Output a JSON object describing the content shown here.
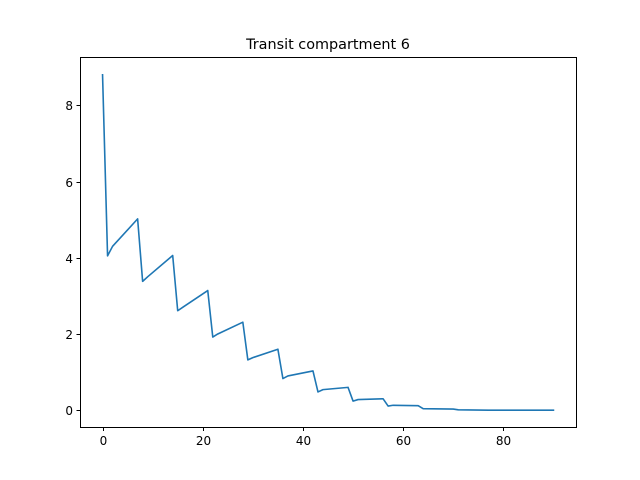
{
  "chart_data": {
    "type": "line",
    "title": "Transit compartment 6",
    "xlabel": "",
    "ylabel": "",
    "xlim": [
      -4.5,
      94.5
    ],
    "ylim": [
      -0.44,
      9.24
    ],
    "grid": false,
    "legend": "none",
    "x_ticks": [
      {
        "value": 0,
        "label": "0"
      },
      {
        "value": 20,
        "label": "20"
      },
      {
        "value": 40,
        "label": "40"
      },
      {
        "value": 60,
        "label": "60"
      },
      {
        "value": 80,
        "label": "80"
      }
    ],
    "y_ticks": [
      {
        "value": 0,
        "label": "0"
      },
      {
        "value": 2,
        "label": "2"
      },
      {
        "value": 4,
        "label": "4"
      },
      {
        "value": 6,
        "label": "6"
      },
      {
        "value": 8,
        "label": "8"
      }
    ],
    "series": [
      {
        "color": "#1f77b4",
        "points": [
          [
            0,
            8.8
          ],
          [
            1,
            4.05
          ],
          [
            2,
            4.3
          ],
          [
            7,
            5.02
          ],
          [
            8,
            3.38
          ],
          [
            9,
            3.5
          ],
          [
            14,
            4.06
          ],
          [
            15,
            2.61
          ],
          [
            16,
            2.7
          ],
          [
            21,
            3.14
          ],
          [
            22,
            1.92
          ],
          [
            23,
            2.0
          ],
          [
            28,
            2.31
          ],
          [
            29,
            1.32
          ],
          [
            30,
            1.38
          ],
          [
            35,
            1.6
          ],
          [
            36,
            0.83
          ],
          [
            37,
            0.9
          ],
          [
            42,
            1.03
          ],
          [
            43,
            0.48
          ],
          [
            44,
            0.54
          ],
          [
            49,
            0.6
          ],
          [
            50,
            0.24
          ],
          [
            51,
            0.28
          ],
          [
            56,
            0.3
          ],
          [
            57,
            0.11
          ],
          [
            58,
            0.13
          ],
          [
            63,
            0.12
          ],
          [
            64,
            0.04
          ],
          [
            70,
            0.03
          ],
          [
            71,
            0.01
          ],
          [
            77,
            0.0
          ],
          [
            90,
            0.0
          ]
        ]
      }
    ]
  }
}
